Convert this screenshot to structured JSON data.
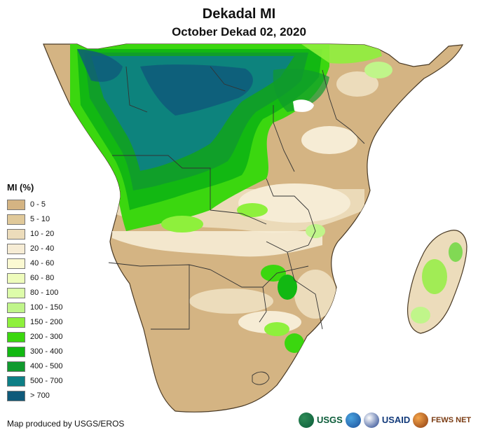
{
  "title": "Dekadal MI",
  "subtitle": "October Dekad 02, 2020",
  "legend": {
    "title": "MI (%)",
    "items": [
      {
        "label": "0 - 5",
        "color": "#d4b483"
      },
      {
        "label": "5 - 10",
        "color": "#e0c99a"
      },
      {
        "label": "10 - 20",
        "color": "#ecdcbb"
      },
      {
        "label": "20 - 40",
        "color": "#f6ecd5"
      },
      {
        "label": "40 - 60",
        "color": "#fbf9d2"
      },
      {
        "label": "60 - 80",
        "color": "#eefcbc"
      },
      {
        "label": "80 - 100",
        "color": "#ddfcaa"
      },
      {
        "label": "100 - 150",
        "color": "#c0f58a"
      },
      {
        "label": "150 - 200",
        "color": "#8ef03c"
      },
      {
        "label": "200 - 300",
        "color": "#3bd70f"
      },
      {
        "label": "300 - 400",
        "color": "#12b812"
      },
      {
        "label": "400 - 500",
        "color": "#109a2e"
      },
      {
        "label": "500 - 700",
        "color": "#0d7f86"
      },
      {
        "label": "> 700",
        "color": "#0f5a7a"
      }
    ]
  },
  "credit": "Map produced by USGS/EROS",
  "logos": {
    "usgs": "USGS",
    "usaid": "USAID",
    "fews": "FEWS NET"
  }
}
